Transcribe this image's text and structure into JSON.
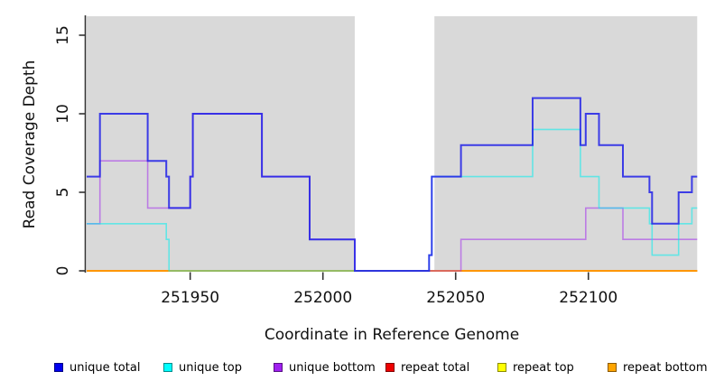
{
  "figure": {
    "background": "#FFFFFF",
    "panel_background": "#D9D9D9",
    "axis_color": "#333333"
  },
  "chart_data": {
    "type": "line",
    "subtype": "step-coverage",
    "title": "",
    "xlabel": "Coordinate in Reference Genome",
    "ylabel": "Read Coverage Depth",
    "xlim": [
      251911,
      252141
    ],
    "ylim": [
      0,
      16.2
    ],
    "x_ticks": [
      251950,
      252000,
      252050,
      252100
    ],
    "y_ticks": [
      0,
      5,
      10,
      15
    ],
    "grid": "off",
    "shaded_regions": [
      [
        251911,
        252012
      ],
      [
        252042,
        252141
      ]
    ],
    "gap_region": [
      252012,
      252042
    ],
    "series": [
      {
        "name": "unique total",
        "color": "#2020E8",
        "opacity": 0.85,
        "width": 2,
        "z": 6,
        "points": [
          [
            251911,
            6
          ],
          [
            251916,
            10
          ],
          [
            251934,
            7
          ],
          [
            251941,
            6
          ],
          [
            251942,
            4
          ],
          [
            251950,
            6
          ],
          [
            251951,
            10
          ],
          [
            251977,
            6
          ],
          [
            251995,
            2
          ],
          [
            252012,
            0
          ],
          [
            252040,
            1
          ],
          [
            252041,
            6
          ],
          [
            252052,
            8
          ],
          [
            252079,
            11
          ],
          [
            252097,
            8
          ],
          [
            252099,
            10
          ],
          [
            252104,
            8
          ],
          [
            252113,
            6
          ],
          [
            252123,
            5
          ],
          [
            252124,
            3
          ],
          [
            252134,
            5
          ],
          [
            252139,
            6
          ]
        ]
      },
      {
        "name": "unique top",
        "color": "#00EEEE",
        "opacity": 0.55,
        "width": 1.6,
        "z": 5,
        "points": [
          [
            251911,
            3
          ],
          [
            251941,
            2
          ],
          [
            251942,
            0
          ],
          [
            252040,
            1
          ],
          [
            252041,
            6
          ],
          [
            252079,
            9
          ],
          [
            252097,
            6
          ],
          [
            252104,
            4
          ],
          [
            252123,
            3
          ],
          [
            252124,
            1
          ],
          [
            252134,
            3
          ],
          [
            252139,
            4
          ]
        ]
      },
      {
        "name": "unique bottom",
        "color": "#A020F0",
        "opacity": 0.5,
        "width": 1.6,
        "z": 4,
        "points": [
          [
            251911,
            3
          ],
          [
            251916,
            7
          ],
          [
            251934,
            4
          ],
          [
            251950,
            6
          ],
          [
            251951,
            10
          ],
          [
            251977,
            6
          ],
          [
            251995,
            2
          ],
          [
            252012,
            0
          ],
          [
            252052,
            2
          ],
          [
            252099,
            4
          ],
          [
            252113,
            2
          ]
        ]
      },
      {
        "name": "repeat total",
        "color": "#DD0000",
        "opacity": 0.9,
        "width": 1.6,
        "z": 1,
        "points": [
          [
            251911,
            0
          ]
        ]
      },
      {
        "name": "repeat top",
        "color": "#FFEE00",
        "opacity": 0.9,
        "width": 1.6,
        "z": 2,
        "points": [
          [
            251911,
            0
          ]
        ]
      },
      {
        "name": "repeat bottom",
        "color": "#FF9100",
        "opacity": 0.9,
        "width": 2,
        "z": 3,
        "points": [
          [
            251911,
            0
          ]
        ]
      }
    ],
    "legend": {
      "position": "bottom",
      "entries": [
        {
          "label": "unique total",
          "color": "#0000EE"
        },
        {
          "label": "unique top",
          "color": "#00FFFF"
        },
        {
          "label": "unique bottom",
          "color": "#A020F0"
        },
        {
          "label": "repeat total",
          "color": "#EE0000"
        },
        {
          "label": "repeat top",
          "color": "#FFFF00"
        },
        {
          "label": "repeat bottom",
          "color": "#FFA500"
        }
      ]
    }
  }
}
